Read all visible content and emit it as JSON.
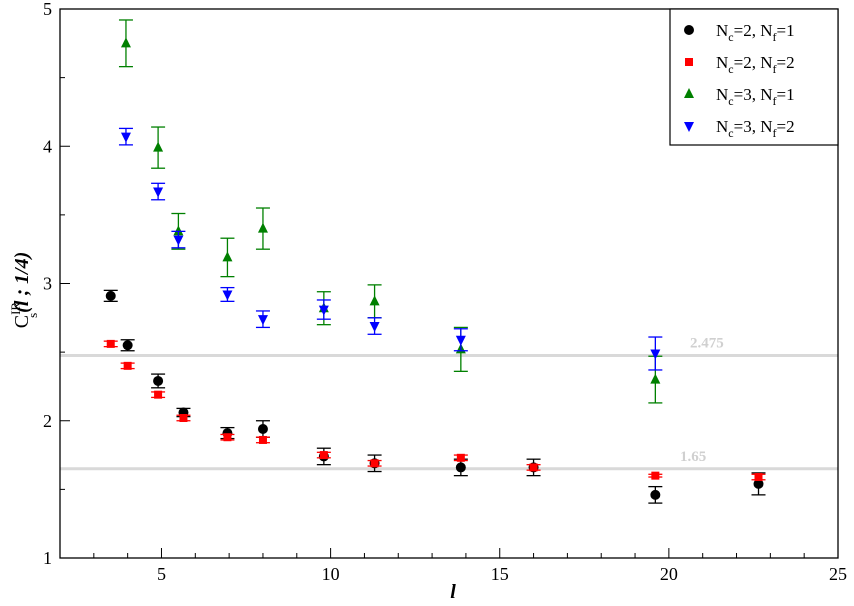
{
  "chart_data": {
    "type": "scatter",
    "xlabel": "l",
    "ylabel": {
      "main": "C",
      "sup": "IR",
      "sub": "s",
      "args": "(l ; 1/4)"
    },
    "xlim": [
      2,
      25
    ],
    "ylim": [
      1,
      5
    ],
    "xticks": [
      5,
      10,
      15,
      20,
      25
    ],
    "yticks": [
      1,
      2,
      3,
      4,
      5
    ],
    "grid": false,
    "legend_position": "top-right",
    "reference_lines": [
      {
        "y": 2.475,
        "label": "2.475",
        "color": "#d9d9d9"
      },
      {
        "y": 1.65,
        "label": "1.65",
        "color": "#d9d9d9"
      }
    ],
    "series": [
      {
        "name": "N_c=2, N_f=1",
        "legend": {
          "a": "N",
          "as": "c",
          "b": "=2, N",
          "bs": "f",
          "c": "=1"
        },
        "marker": "circle",
        "color": "#000000",
        "points": [
          {
            "x": 3.5,
            "y": 2.91,
            "err": 0.04
          },
          {
            "x": 4.0,
            "y": 2.55,
            "err": 0.04
          },
          {
            "x": 4.9,
            "y": 2.29,
            "err": 0.05
          },
          {
            "x": 5.65,
            "y": 2.06,
            "err": 0.03
          },
          {
            "x": 6.95,
            "y": 1.91,
            "err": 0.04
          },
          {
            "x": 8.0,
            "y": 1.94,
            "err": 0.06
          },
          {
            "x": 9.8,
            "y": 1.74,
            "err": 0.06
          },
          {
            "x": 11.3,
            "y": 1.69,
            "err": 0.06
          },
          {
            "x": 13.85,
            "y": 1.66,
            "err": 0.06
          },
          {
            "x": 16.0,
            "y": 1.66,
            "err": 0.06
          },
          {
            "x": 19.6,
            "y": 1.46,
            "err": 0.06
          },
          {
            "x": 22.65,
            "y": 1.54,
            "err": 0.08
          }
        ]
      },
      {
        "name": "N_c=2, N_f=2",
        "legend": {
          "a": "N",
          "as": "c",
          "b": "=2, N",
          "bs": "f",
          "c": "=2"
        },
        "marker": "square",
        "color": "#ff0000",
        "points": [
          {
            "x": 3.5,
            "y": 2.56,
            "err": 0.02
          },
          {
            "x": 4.0,
            "y": 2.4,
            "err": 0.02
          },
          {
            "x": 4.9,
            "y": 2.19,
            "err": 0.02
          },
          {
            "x": 5.65,
            "y": 2.02,
            "err": 0.02
          },
          {
            "x": 6.95,
            "y": 1.88,
            "err": 0.02
          },
          {
            "x": 8.0,
            "y": 1.86,
            "err": 0.02
          },
          {
            "x": 9.8,
            "y": 1.75,
            "err": 0.02
          },
          {
            "x": 11.3,
            "y": 1.69,
            "err": 0.02
          },
          {
            "x": 13.85,
            "y": 1.73,
            "err": 0.02
          },
          {
            "x": 16.0,
            "y": 1.66,
            "err": 0.02
          },
          {
            "x": 19.6,
            "y": 1.6,
            "err": 0.01
          },
          {
            "x": 22.65,
            "y": 1.59,
            "err": 0.02
          }
        ]
      },
      {
        "name": "N_c=3, N_f=1",
        "legend": {
          "a": "N",
          "as": "c",
          "b": "=3, N",
          "bs": "f",
          "c": "=1"
        },
        "marker": "triangle-up",
        "color": "#008000",
        "points": [
          {
            "x": 3.95,
            "y": 4.75,
            "err": 0.17
          },
          {
            "x": 4.9,
            "y": 3.99,
            "err": 0.15
          },
          {
            "x": 5.5,
            "y": 3.38,
            "err": 0.13
          },
          {
            "x": 6.95,
            "y": 3.19,
            "err": 0.14
          },
          {
            "x": 8.0,
            "y": 3.4,
            "err": 0.15
          },
          {
            "x": 9.8,
            "y": 2.82,
            "err": 0.12
          },
          {
            "x": 11.3,
            "y": 2.87,
            "err": 0.12
          },
          {
            "x": 13.85,
            "y": 2.52,
            "err": 0.16
          },
          {
            "x": 19.6,
            "y": 2.3,
            "err": 0.17
          }
        ]
      },
      {
        "name": "N_c=3, N_f=2",
        "legend": {
          "a": "N",
          "as": "c",
          "b": "=3, N",
          "bs": "f",
          "c": "=2"
        },
        "marker": "triangle-down",
        "color": "#0000ff",
        "points": [
          {
            "x": 3.95,
            "y": 4.07,
            "err": 0.06
          },
          {
            "x": 4.9,
            "y": 3.67,
            "err": 0.06
          },
          {
            "x": 5.5,
            "y": 3.32,
            "err": 0.06
          },
          {
            "x": 6.95,
            "y": 2.92,
            "err": 0.05
          },
          {
            "x": 8.0,
            "y": 2.74,
            "err": 0.06
          },
          {
            "x": 9.8,
            "y": 2.81,
            "err": 0.07
          },
          {
            "x": 11.3,
            "y": 2.69,
            "err": 0.06
          },
          {
            "x": 13.85,
            "y": 2.59,
            "err": 0.08
          },
          {
            "x": 19.6,
            "y": 2.49,
            "err": 0.12
          }
        ]
      }
    ]
  }
}
